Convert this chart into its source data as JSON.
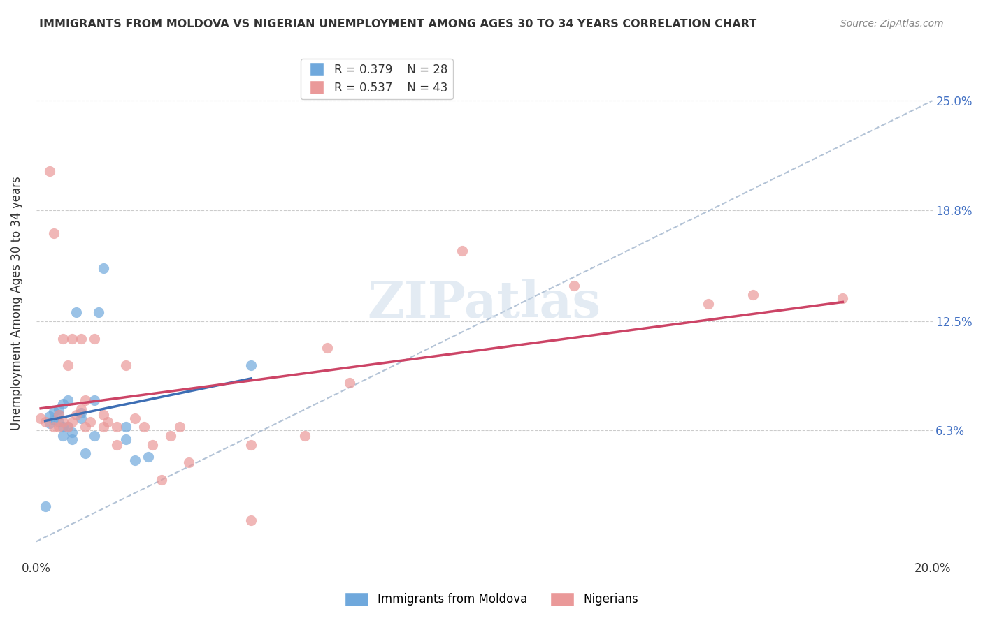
{
  "title": "IMMIGRANTS FROM MOLDOVA VS NIGERIAN UNEMPLOYMENT AMONG AGES 30 TO 34 YEARS CORRELATION CHART",
  "source": "Source: ZipAtlas.com",
  "xlabel": "",
  "ylabel": "Unemployment Among Ages 30 to 34 years",
  "xlim": [
    0.0,
    0.2
  ],
  "ylim": [
    -0.01,
    0.28
  ],
  "xticks": [
    0.0,
    0.04,
    0.08,
    0.12,
    0.16,
    0.2
  ],
  "xtick_labels": [
    "0.0%",
    "",
    "",
    "",
    "",
    "20.0%"
  ],
  "ytick_values": [
    0.063,
    0.125,
    0.188,
    0.25
  ],
  "ytick_labels": [
    "6.3%",
    "12.5%",
    "18.8%",
    "25.0%"
  ],
  "legend_r1": "R = 0.379",
  "legend_n1": "N = 28",
  "legend_r2": "R = 0.537",
  "legend_n2": "N = 43",
  "blue_color": "#6fa8dc",
  "pink_color": "#ea9999",
  "blue_line_color": "#3d6eb4",
  "pink_line_color": "#cc4466",
  "dashed_line_color": "#a0b4cc",
  "watermark": "ZIPatlas",
  "watermark_color": "#c8d8e8",
  "blue_scatter_x": [
    0.002,
    0.003,
    0.003,
    0.004,
    0.004,
    0.005,
    0.005,
    0.005,
    0.006,
    0.006,
    0.006,
    0.007,
    0.007,
    0.008,
    0.008,
    0.009,
    0.01,
    0.01,
    0.011,
    0.013,
    0.013,
    0.014,
    0.015,
    0.02,
    0.02,
    0.022,
    0.025,
    0.048
  ],
  "blue_scatter_y": [
    0.02,
    0.067,
    0.071,
    0.069,
    0.074,
    0.068,
    0.072,
    0.075,
    0.06,
    0.065,
    0.078,
    0.065,
    0.08,
    0.058,
    0.062,
    0.13,
    0.07,
    0.073,
    0.05,
    0.06,
    0.08,
    0.13,
    0.155,
    0.058,
    0.065,
    0.046,
    0.048,
    0.1
  ],
  "pink_scatter_x": [
    0.001,
    0.002,
    0.003,
    0.004,
    0.004,
    0.005,
    0.005,
    0.006,
    0.006,
    0.007,
    0.007,
    0.008,
    0.008,
    0.009,
    0.01,
    0.01,
    0.011,
    0.011,
    0.012,
    0.013,
    0.015,
    0.015,
    0.016,
    0.018,
    0.018,
    0.02,
    0.022,
    0.024,
    0.026,
    0.028,
    0.03,
    0.032,
    0.034,
    0.048,
    0.048,
    0.06,
    0.065,
    0.07,
    0.095,
    0.12,
    0.15,
    0.16,
    0.18
  ],
  "pink_scatter_y": [
    0.07,
    0.068,
    0.21,
    0.065,
    0.175,
    0.065,
    0.072,
    0.068,
    0.115,
    0.065,
    0.1,
    0.068,
    0.115,
    0.072,
    0.115,
    0.075,
    0.065,
    0.08,
    0.068,
    0.115,
    0.065,
    0.072,
    0.068,
    0.065,
    0.055,
    0.1,
    0.07,
    0.065,
    0.055,
    0.035,
    0.06,
    0.065,
    0.045,
    0.012,
    0.055,
    0.06,
    0.11,
    0.09,
    0.165,
    0.145,
    0.135,
    0.14,
    0.138
  ]
}
